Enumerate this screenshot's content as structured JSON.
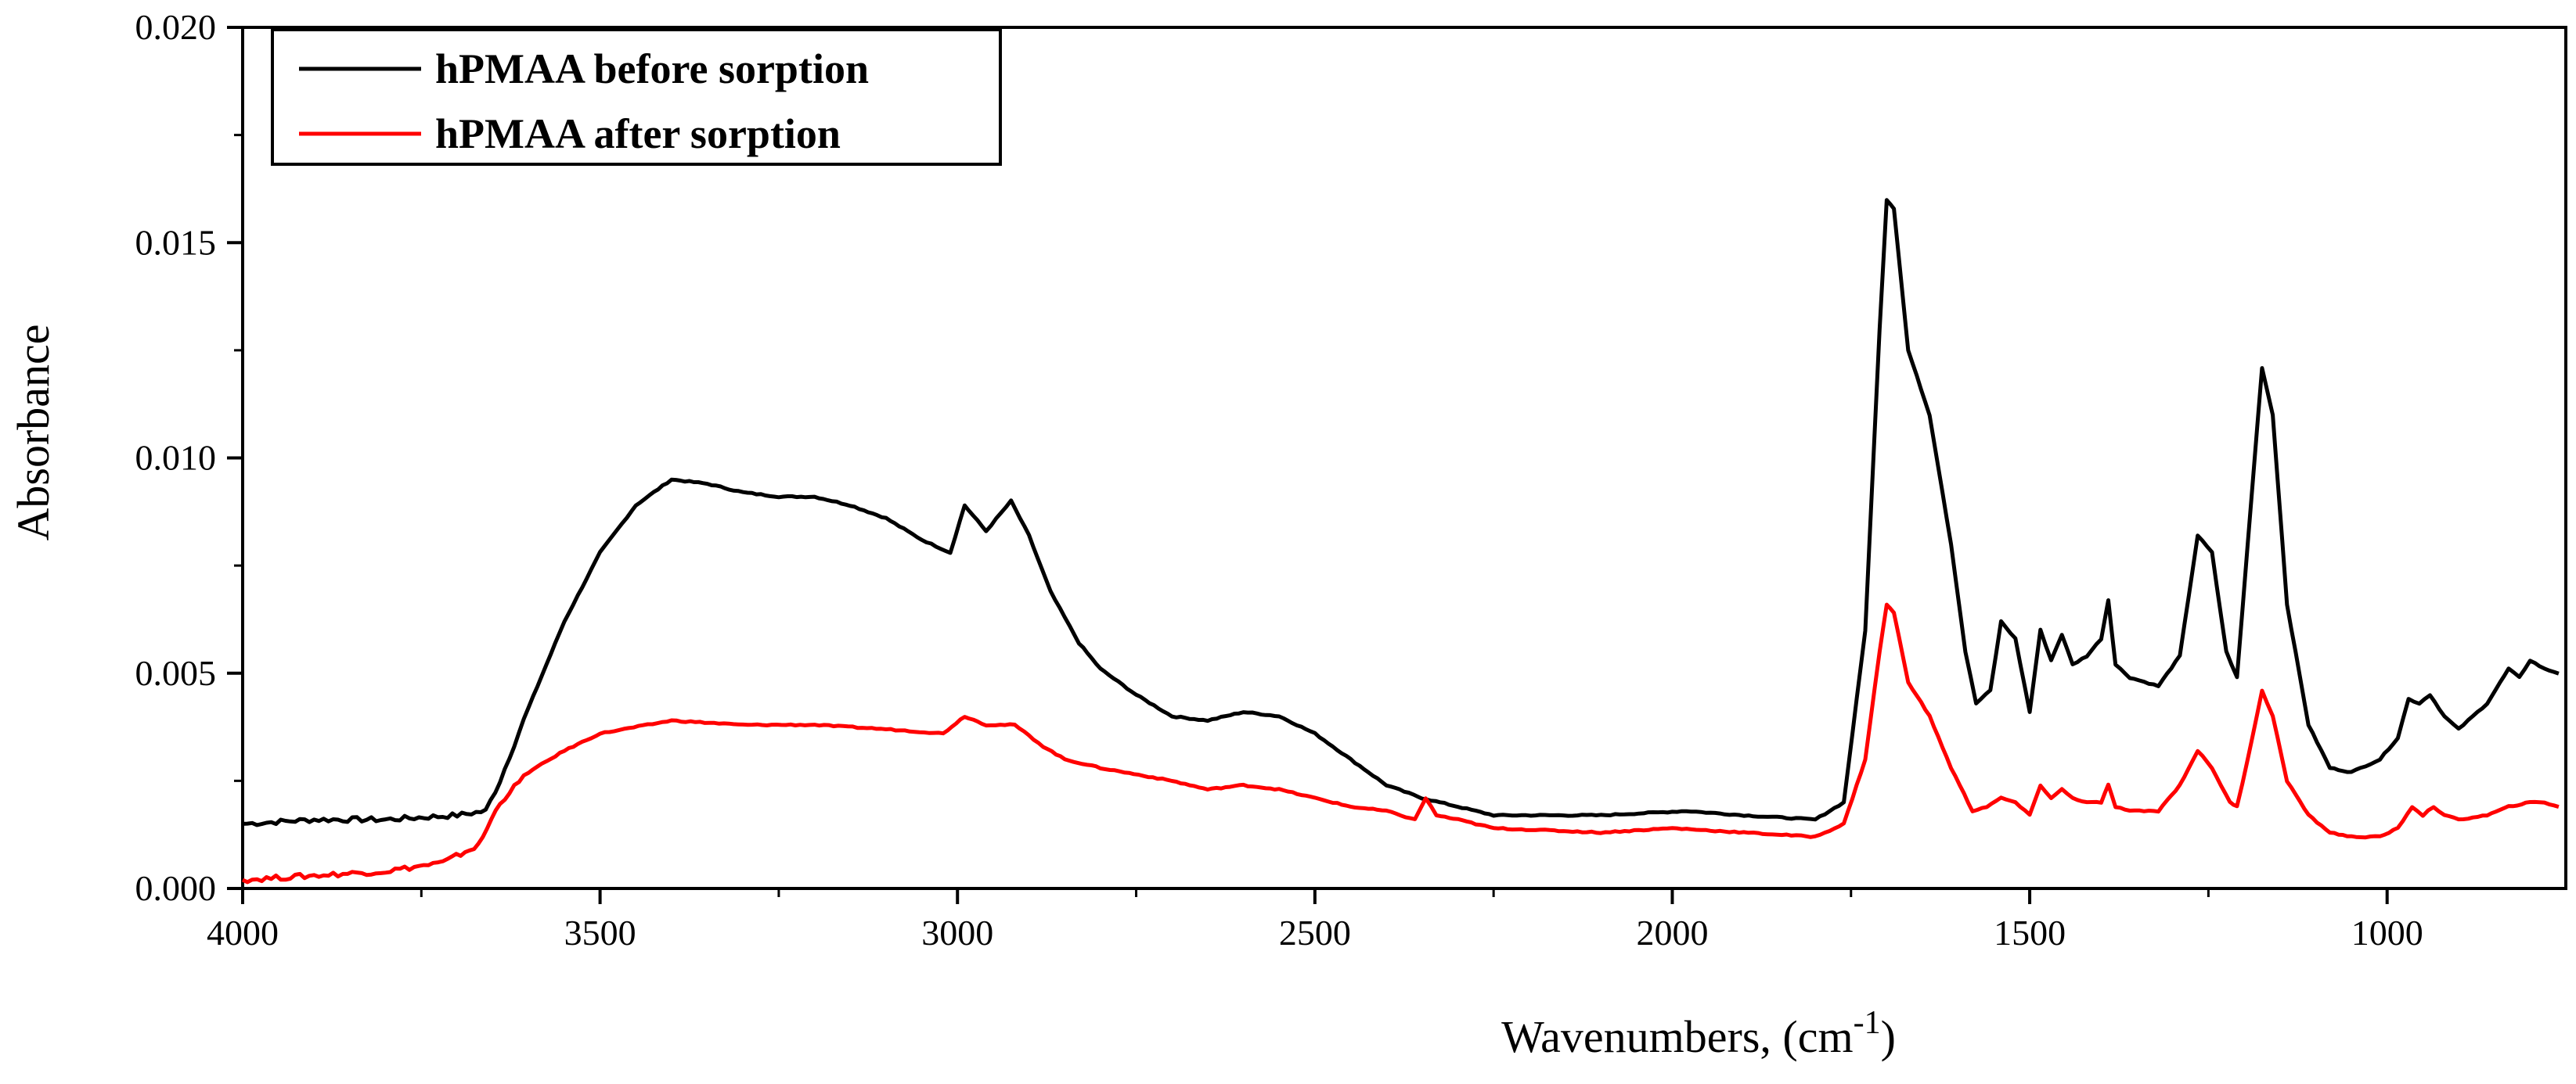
{
  "chart_data": {
    "type": "line",
    "title": "",
    "xlabel": "Wavenumbers, (cm",
    "xlabel_superscript": "-1",
    "xlabel_suffix": ")",
    "ylabel": "Absorbance",
    "xlim": [
      4000,
      750
    ],
    "ylim": [
      0.0,
      0.02
    ],
    "x_ticks": [
      4000,
      3500,
      3000,
      2500,
      2000,
      1500,
      1000
    ],
    "x_tick_labels": [
      "4000",
      "3500",
      "3000",
      "2500",
      "2000",
      "1500",
      "1000"
    ],
    "y_ticks": [
      0.0,
      0.005,
      0.01,
      0.015,
      0.02
    ],
    "y_tick_labels": [
      "0.000",
      "0.005",
      "0.010",
      "0.015",
      "0.020"
    ],
    "legend_position": "top-left",
    "grid": false,
    "series": [
      {
        "name": "hPMAA before sorption",
        "color": "#000000",
        "points": [
          [
            4000,
            0.0015
          ],
          [
            3900,
            0.0016
          ],
          [
            3800,
            0.0016
          ],
          [
            3700,
            0.0017
          ],
          [
            3660,
            0.0018
          ],
          [
            3640,
            0.0025
          ],
          [
            3600,
            0.0042
          ],
          [
            3550,
            0.0062
          ],
          [
            3500,
            0.0078
          ],
          [
            3450,
            0.0089
          ],
          [
            3400,
            0.0095
          ],
          [
            3350,
            0.0094
          ],
          [
            3300,
            0.0092
          ],
          [
            3250,
            0.0091
          ],
          [
            3200,
            0.0091
          ],
          [
            3150,
            0.0089
          ],
          [
            3100,
            0.0086
          ],
          [
            3050,
            0.0081
          ],
          [
            3010,
            0.0078
          ],
          [
            2990,
            0.0089
          ],
          [
            2960,
            0.0083
          ],
          [
            2925,
            0.009
          ],
          [
            2900,
            0.0082
          ],
          [
            2870,
            0.0069
          ],
          [
            2850,
            0.0063
          ],
          [
            2830,
            0.0057
          ],
          [
            2800,
            0.0051
          ],
          [
            2750,
            0.0045
          ],
          [
            2700,
            0.004
          ],
          [
            2650,
            0.0039
          ],
          [
            2600,
            0.0041
          ],
          [
            2550,
            0.004
          ],
          [
            2500,
            0.0036
          ],
          [
            2450,
            0.003
          ],
          [
            2400,
            0.0024
          ],
          [
            2350,
            0.0021
          ],
          [
            2300,
            0.0019
          ],
          [
            2250,
            0.0017
          ],
          [
            2100,
            0.0017
          ],
          [
            1980,
            0.0018
          ],
          [
            1900,
            0.0017
          ],
          [
            1800,
            0.0016
          ],
          [
            1760,
            0.002
          ],
          [
            1730,
            0.006
          ],
          [
            1710,
            0.013
          ],
          [
            1700,
            0.016
          ],
          [
            1690,
            0.0158
          ],
          [
            1670,
            0.0125
          ],
          [
            1640,
            0.011
          ],
          [
            1610,
            0.008
          ],
          [
            1590,
            0.0055
          ],
          [
            1575,
            0.0043
          ],
          [
            1555,
            0.0046
          ],
          [
            1540,
            0.0062
          ],
          [
            1520,
            0.0058
          ],
          [
            1500,
            0.0041
          ],
          [
            1485,
            0.006
          ],
          [
            1470,
            0.0053
          ],
          [
            1455,
            0.0059
          ],
          [
            1440,
            0.0052
          ],
          [
            1420,
            0.0054
          ],
          [
            1400,
            0.0058
          ],
          [
            1390,
            0.0067
          ],
          [
            1380,
            0.0052
          ],
          [
            1360,
            0.0049
          ],
          [
            1320,
            0.0047
          ],
          [
            1290,
            0.0054
          ],
          [
            1265,
            0.0082
          ],
          [
            1245,
            0.0078
          ],
          [
            1225,
            0.0055
          ],
          [
            1210,
            0.0049
          ],
          [
            1195,
            0.008
          ],
          [
            1175,
            0.0121
          ],
          [
            1160,
            0.011
          ],
          [
            1140,
            0.0066
          ],
          [
            1110,
            0.0038
          ],
          [
            1080,
            0.0028
          ],
          [
            1050,
            0.0027
          ],
          [
            1010,
            0.003
          ],
          [
            985,
            0.0035
          ],
          [
            970,
            0.0044
          ],
          [
            955,
            0.0043
          ],
          [
            940,
            0.0045
          ],
          [
            920,
            0.004
          ],
          [
            900,
            0.0037
          ],
          [
            860,
            0.0043
          ],
          [
            830,
            0.0051
          ],
          [
            815,
            0.0049
          ],
          [
            800,
            0.0053
          ],
          [
            780,
            0.0051
          ],
          [
            760,
            0.005
          ]
        ]
      },
      {
        "name": "hPMAA after sorption",
        "color": "#ff0000",
        "points": [
          [
            4000,
            0.0002
          ],
          [
            3900,
            0.0003
          ],
          [
            3800,
            0.0004
          ],
          [
            3720,
            0.0006
          ],
          [
            3670,
            0.001
          ],
          [
            3640,
            0.002
          ],
          [
            3600,
            0.0027
          ],
          [
            3550,
            0.0032
          ],
          [
            3500,
            0.0036
          ],
          [
            3400,
            0.0039
          ],
          [
            3300,
            0.0038
          ],
          [
            3200,
            0.0038
          ],
          [
            3100,
            0.0037
          ],
          [
            3020,
            0.0036
          ],
          [
            2990,
            0.004
          ],
          [
            2960,
            0.0038
          ],
          [
            2920,
            0.0038
          ],
          [
            2880,
            0.0033
          ],
          [
            2850,
            0.003
          ],
          [
            2800,
            0.0028
          ],
          [
            2700,
            0.0025
          ],
          [
            2650,
            0.0023
          ],
          [
            2600,
            0.0024
          ],
          [
            2550,
            0.0023
          ],
          [
            2500,
            0.0021
          ],
          [
            2450,
            0.0019
          ],
          [
            2400,
            0.0018
          ],
          [
            2360,
            0.0016
          ],
          [
            2345,
            0.0021
          ],
          [
            2330,
            0.0017
          ],
          [
            2300,
            0.0016
          ],
          [
            2250,
            0.0014
          ],
          [
            2100,
            0.0013
          ],
          [
            2000,
            0.0014
          ],
          [
            1900,
            0.0013
          ],
          [
            1800,
            0.0012
          ],
          [
            1760,
            0.0015
          ],
          [
            1730,
            0.003
          ],
          [
            1710,
            0.0055
          ],
          [
            1700,
            0.0066
          ],
          [
            1690,
            0.0064
          ],
          [
            1670,
            0.0048
          ],
          [
            1640,
            0.004
          ],
          [
            1610,
            0.0028
          ],
          [
            1580,
            0.0018
          ],
          [
            1560,
            0.0019
          ],
          [
            1540,
            0.0021
          ],
          [
            1520,
            0.002
          ],
          [
            1500,
            0.0017
          ],
          [
            1485,
            0.0024
          ],
          [
            1470,
            0.0021
          ],
          [
            1455,
            0.0023
          ],
          [
            1440,
            0.0021
          ],
          [
            1420,
            0.002
          ],
          [
            1400,
            0.002
          ],
          [
            1390,
            0.0024
          ],
          [
            1380,
            0.0019
          ],
          [
            1360,
            0.0018
          ],
          [
            1320,
            0.0018
          ],
          [
            1290,
            0.0024
          ],
          [
            1265,
            0.0032
          ],
          [
            1245,
            0.0028
          ],
          [
            1220,
            0.002
          ],
          [
            1210,
            0.0019
          ],
          [
            1195,
            0.003
          ],
          [
            1175,
            0.0046
          ],
          [
            1160,
            0.004
          ],
          [
            1140,
            0.0025
          ],
          [
            1110,
            0.0017
          ],
          [
            1080,
            0.0013
          ],
          [
            1050,
            0.0012
          ],
          [
            1010,
            0.0012
          ],
          [
            985,
            0.0014
          ],
          [
            965,
            0.0019
          ],
          [
            950,
            0.0017
          ],
          [
            935,
            0.0019
          ],
          [
            920,
            0.0017
          ],
          [
            900,
            0.0016
          ],
          [
            860,
            0.0017
          ],
          [
            830,
            0.0019
          ],
          [
            800,
            0.002
          ],
          [
            780,
            0.002
          ],
          [
            760,
            0.0019
          ]
        ]
      }
    ]
  }
}
